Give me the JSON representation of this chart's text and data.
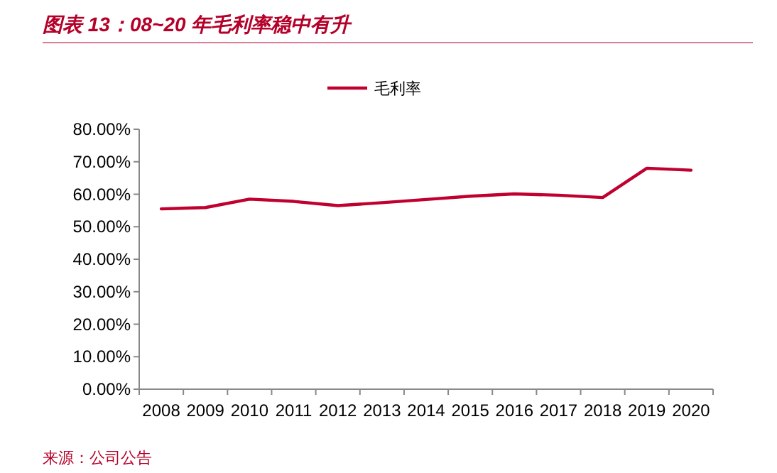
{
  "chart_data": {
    "type": "line",
    "title": "图表 13：08~20 年毛利率稳中有升",
    "categories": [
      "2008",
      "2009",
      "2010",
      "2011",
      "2012",
      "2013",
      "2014",
      "2015",
      "2016",
      "2017",
      "2018",
      "2019",
      "2020"
    ],
    "series": [
      {
        "name": "毛利率",
        "color": "#c0002f",
        "values": [
          55.5,
          55.9,
          58.5,
          57.8,
          56.5,
          57.4,
          58.4,
          59.4,
          60.1,
          59.7,
          59.0,
          68.0,
          67.4
        ]
      }
    ],
    "ylim": [
      0,
      80
    ],
    "yticks": [
      {
        "value": 0,
        "label": "0.00%"
      },
      {
        "value": 10,
        "label": "10.00%"
      },
      {
        "value": 20,
        "label": "20.00%"
      },
      {
        "value": 30,
        "label": "30.00%"
      },
      {
        "value": 40,
        "label": "40.00%"
      },
      {
        "value": 50,
        "label": "50.00%"
      },
      {
        "value": 60,
        "label": "60.00%"
      },
      {
        "value": 70,
        "label": "70.00%"
      },
      {
        "value": 80,
        "label": "80.00%"
      }
    ],
    "legend": "top",
    "grid": false,
    "marker": "none",
    "line_style": "solid",
    "annotations": [
      "来源：公司公告"
    ]
  }
}
